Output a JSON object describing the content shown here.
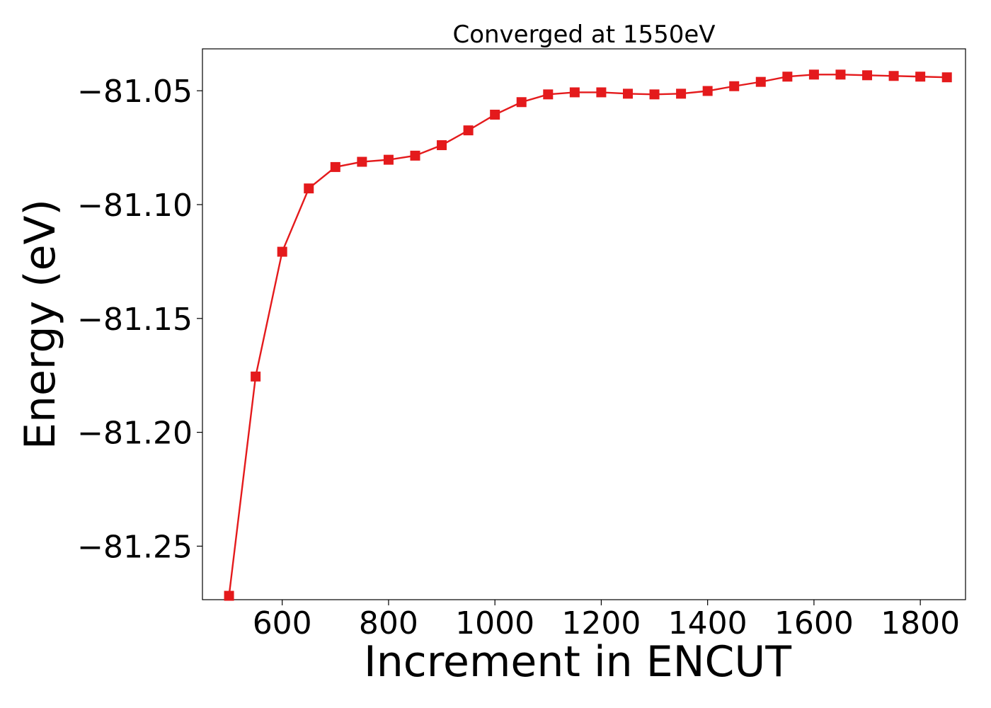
{
  "chart_data": {
    "type": "line",
    "title": "Converged at 1550eV",
    "xlabel": "Increment in ENCUT",
    "ylabel": "Energy (eV)",
    "xlim": [
      450,
      1885
    ],
    "ylim": [
      -81.2735,
      -81.0316
    ],
    "x_ticks": [
      600,
      800,
      1000,
      1200,
      1400,
      1600,
      1800
    ],
    "x_tick_labels": [
      "600",
      "800",
      "1000",
      "1200",
      "1400",
      "1600",
      "1800"
    ],
    "y_ticks": [
      -81.25,
      -81.2,
      -81.15,
      -81.1,
      -81.05
    ],
    "y_tick_labels": [
      "−81.25",
      "−81.20",
      "−81.15",
      "−81.10",
      "−81.05"
    ],
    "grid": false,
    "series": [
      {
        "color": "#e41a1c",
        "marker": "square",
        "x": [
          500,
          550,
          600,
          650,
          700,
          750,
          800,
          850,
          900,
          950,
          1000,
          1050,
          1100,
          1150,
          1200,
          1250,
          1300,
          1350,
          1400,
          1450,
          1500,
          1550,
          1600,
          1650,
          1700,
          1750,
          1800,
          1850
        ],
        "y": [
          -81.2718,
          -81.1755,
          -81.1207,
          -81.0929,
          -81.0835,
          -81.0812,
          -81.0803,
          -81.0785,
          -81.0739,
          -81.0674,
          -81.0605,
          -81.055,
          -81.0516,
          -81.0507,
          -81.0507,
          -81.0513,
          -81.0516,
          -81.0513,
          -81.0501,
          -81.048,
          -81.0461,
          -81.0438,
          -81.0429,
          -81.0429,
          -81.0432,
          -81.0435,
          -81.0438,
          -81.0441
        ]
      }
    ]
  }
}
